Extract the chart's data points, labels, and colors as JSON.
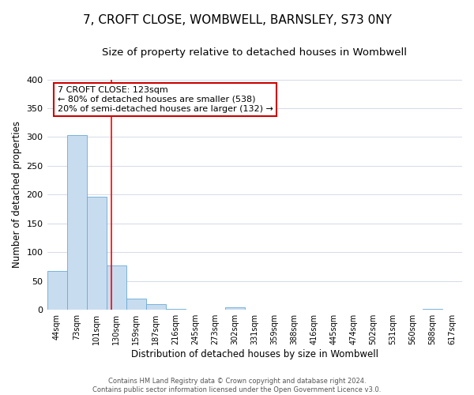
{
  "title": "7, CROFT CLOSE, WOMBWELL, BARNSLEY, S73 0NY",
  "subtitle": "Size of property relative to detached houses in Wombwell",
  "xlabel": "Distribution of detached houses by size in Wombwell",
  "ylabel": "Number of detached properties",
  "bar_labels": [
    "44sqm",
    "73sqm",
    "101sqm",
    "130sqm",
    "159sqm",
    "187sqm",
    "216sqm",
    "245sqm",
    "273sqm",
    "302sqm",
    "331sqm",
    "359sqm",
    "388sqm",
    "416sqm",
    "445sqm",
    "474sqm",
    "502sqm",
    "531sqm",
    "560sqm",
    "588sqm",
    "617sqm"
  ],
  "bar_values": [
    68,
    303,
    197,
    77,
    20,
    10,
    2,
    0,
    0,
    5,
    0,
    0,
    0,
    0,
    0,
    0,
    0,
    0,
    0,
    2,
    0
  ],
  "bar_color": "#c8dcf0",
  "bar_edge_color": "#6aaad4",
  "red_line_x": 2.76,
  "annotation_title": "7 CROFT CLOSE: 123sqm",
  "annotation_line1": "← 80% of detached houses are smaller (538)",
  "annotation_line2": "20% of semi-detached houses are larger (132) →",
  "annotation_box_color": "#ffffff",
  "annotation_box_edge": "#cc0000",
  "ylim": [
    0,
    400
  ],
  "yticks": [
    0,
    50,
    100,
    150,
    200,
    250,
    300,
    350,
    400
  ],
  "title_fontsize": 11,
  "subtitle_fontsize": 9.5,
  "footer_line1": "Contains HM Land Registry data © Crown copyright and database right 2024.",
  "footer_line2": "Contains public sector information licensed under the Open Government Licence v3.0.",
  "background_color": "#ffffff",
  "grid_color": "#ccd5e5"
}
